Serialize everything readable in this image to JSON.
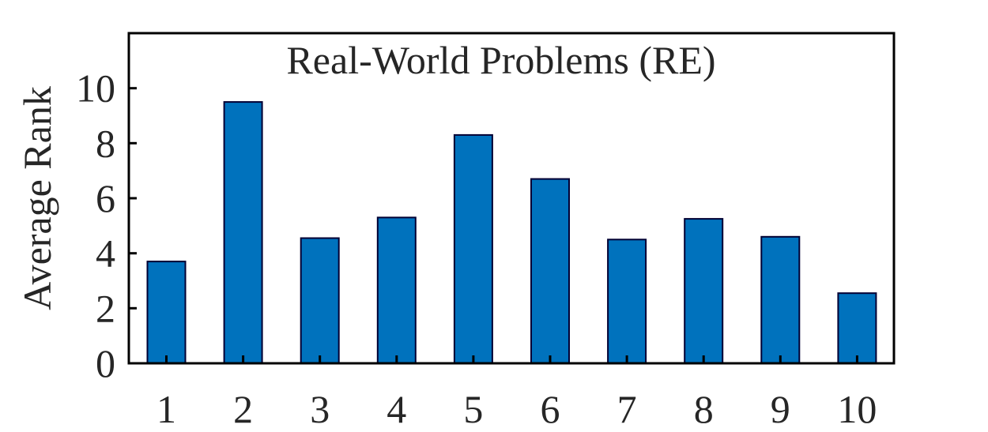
{
  "chart_data": {
    "type": "bar",
    "title": "Real-World Problems (RE)",
    "xlabel": "",
    "ylabel": "Average Rank",
    "categories": [
      "1",
      "2",
      "3",
      "4",
      "5",
      "6",
      "7",
      "8",
      "9",
      "10"
    ],
    "values": [
      3.7,
      9.5,
      4.55,
      5.3,
      8.3,
      6.7,
      4.5,
      5.25,
      4.6,
      2.55
    ],
    "ylim": [
      0,
      12
    ],
    "yticks": [
      "0",
      "2",
      "4",
      "6",
      "8",
      "10"
    ],
    "grid": false,
    "bar_color": "#0072BD",
    "bar_edge_color": "#000033"
  }
}
